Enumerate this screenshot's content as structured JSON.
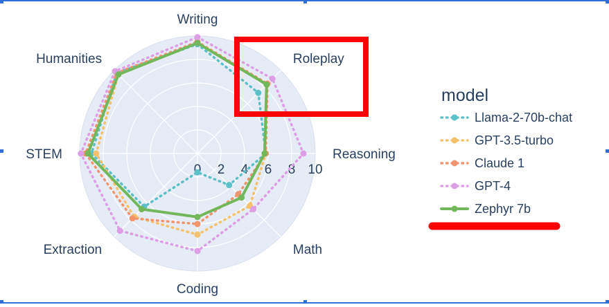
{
  "chart_data": {
    "type": "radar",
    "categories": [
      "Writing",
      "Roleplay",
      "Reasoning",
      "Math",
      "Coding",
      "Extraction",
      "STEM",
      "Humanities"
    ],
    "radial_ticks": [
      "0",
      "2",
      "4",
      "6",
      "8",
      "10"
    ],
    "rlim": [
      0,
      10
    ],
    "legend_title": "model",
    "legend_position": "right",
    "series": [
      {
        "name": "Llama-2-70b-chat",
        "color": "#5bc0c8",
        "dash": "dotted",
        "values": [
          9.3,
          7.3,
          5.8,
          3.8,
          1.6,
          6.4,
          9.0,
          9.7
        ]
      },
      {
        "name": "GPT-3.5-turbo",
        "color": "#f5c16a",
        "dash": "dotted",
        "values": [
          9.4,
          8.4,
          5.8,
          6.3,
          6.9,
          7.6,
          8.6,
          9.5
        ]
      },
      {
        "name": "Claude 1",
        "color": "#f2956e",
        "dash": "dotted",
        "values": [
          9.5,
          8.4,
          5.8,
          4.9,
          6.0,
          7.8,
          9.5,
          9.7
        ]
      },
      {
        "name": "GPT-4",
        "color": "#dd9ee6",
        "dash": "dotted",
        "values": [
          9.9,
          9.0,
          9.0,
          6.7,
          8.3,
          9.3,
          9.9,
          9.9
        ]
      },
      {
        "name": "Zephyr 7b",
        "color": "#72b85a",
        "dash": "solid",
        "values": [
          9.4,
          8.3,
          5.7,
          5.3,
          5.4,
          6.7,
          9.3,
          9.5
        ]
      }
    ]
  },
  "annotations": {
    "highlight_box_color": "#ff0000",
    "highlight_target": "Roleplay",
    "underline_target": "Zephyr 7b"
  },
  "selection_color": "#2f6fd6"
}
